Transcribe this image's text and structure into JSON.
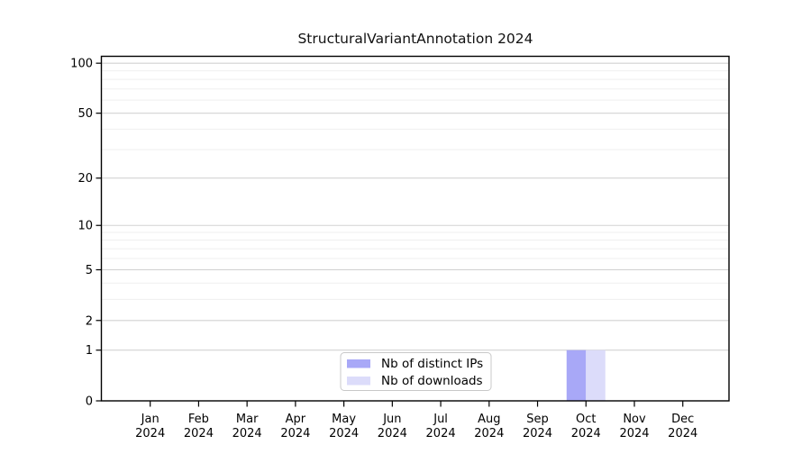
{
  "chart_data": {
    "type": "bar",
    "title": "StructuralVariantAnnotation 2024",
    "year": "2024",
    "categories": [
      "Jan",
      "Feb",
      "Mar",
      "Apr",
      "May",
      "Jun",
      "Jul",
      "Aug",
      "Sep",
      "Oct",
      "Nov",
      "Dec"
    ],
    "series": [
      {
        "name": "Nb of distinct IPs",
        "color": "#a8a8f7",
        "values": [
          0,
          0,
          0,
          0,
          0,
          0,
          0,
          0,
          0,
          1,
          0,
          0
        ]
      },
      {
        "name": "Nb of downloads",
        "color": "#dcdcfa",
        "values": [
          0,
          0,
          0,
          0,
          0,
          0,
          0,
          0,
          0,
          1,
          0,
          0
        ]
      }
    ],
    "y_axis": {
      "scale": "log10(1+x)",
      "ticks": [
        0,
        1,
        2,
        5,
        10,
        20,
        50,
        100
      ],
      "minor_gridlines": [
        3,
        4,
        6,
        7,
        8,
        9,
        30,
        40,
        60,
        70,
        80,
        90
      ],
      "max": 110
    },
    "legend": {
      "position": "bottom-center",
      "entries": [
        "Nb of distinct IPs",
        "Nb of downloads"
      ]
    },
    "colors": {
      "major_grid": "#d2d2d2",
      "minor_grid": "#efefef",
      "axis": "#000000",
      "legend_border": "#c8c8c8",
      "background": "#ffffff"
    }
  }
}
